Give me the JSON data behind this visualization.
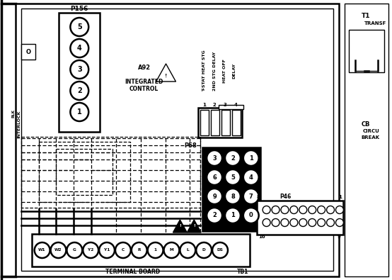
{
  "bg_color": "#ffffff",
  "fg_color": "#000000",
  "figsize": [
    5.54,
    3.95
  ],
  "dpi": 100,
  "p156_circles": [
    "5",
    "4",
    "3",
    "2",
    "1"
  ],
  "p58_labels": [
    [
      "3",
      "2",
      "1"
    ],
    [
      "6",
      "5",
      "4"
    ],
    [
      "9",
      "8",
      "7"
    ],
    [
      "2",
      "1",
      "0"
    ]
  ],
  "tb_labels": [
    "W1",
    "W2",
    "G",
    "Y2",
    "Y1",
    "C",
    "R",
    "1",
    "M",
    "L",
    "D",
    "DS"
  ],
  "relay_labels": [
    "T-STAT HEAT STG",
    "2ND STG DELAY",
    "HEAT OFF",
    "DELAY"
  ],
  "relay_numbers": [
    "1",
    "2",
    "3",
    "4"
  ]
}
